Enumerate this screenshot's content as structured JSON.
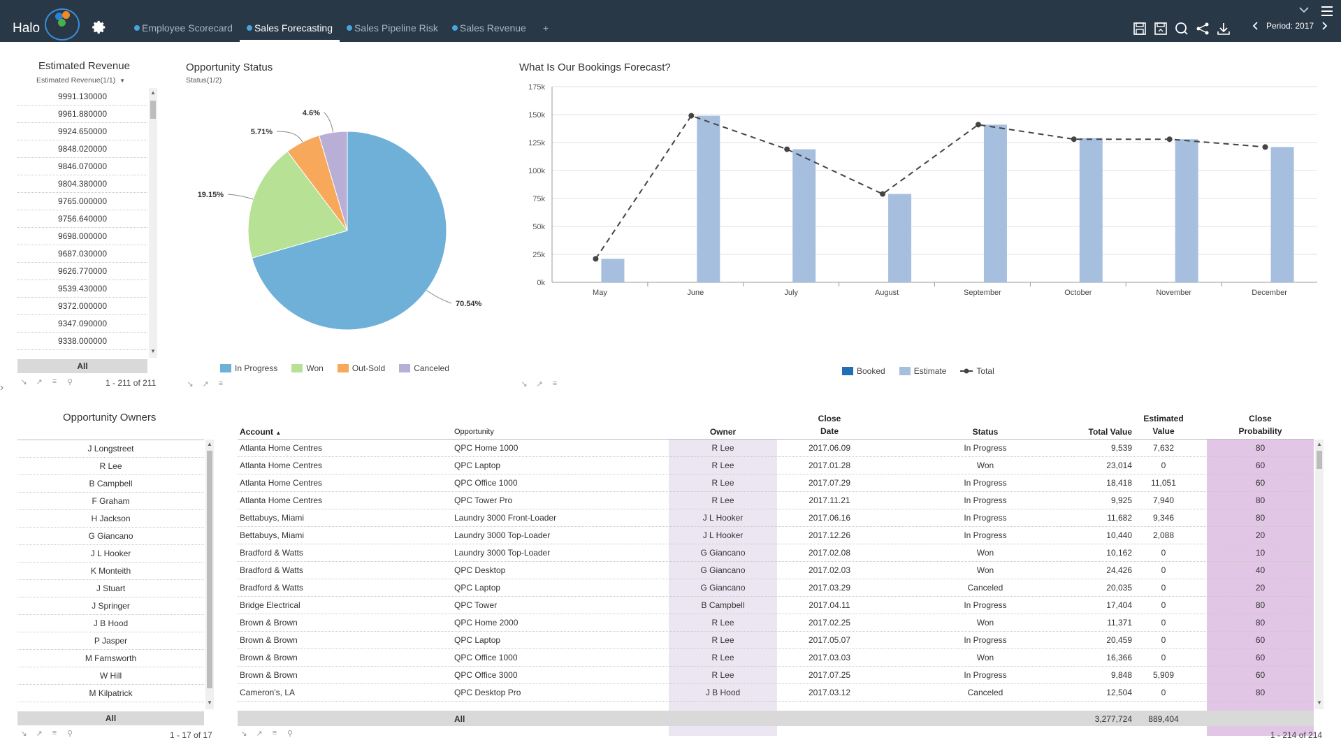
{
  "app": {
    "logo_text": "Halo",
    "tabs": [
      {
        "label": "Employee Scorecard",
        "active": false
      },
      {
        "label": "Sales Forecasting",
        "active": true
      },
      {
        "label": "Sales Pipeline Risk",
        "active": false
      },
      {
        "label": "Sales Revenue",
        "active": false
      }
    ],
    "add_tab": "+",
    "period_label": "Period: 2017",
    "colors": {
      "topbar": "#283847",
      "accent": "#4aa3df"
    },
    "top_icons": [
      "save-icon",
      "save-as-icon",
      "search-icon",
      "share-icon",
      "download-icon"
    ]
  },
  "est_revenue": {
    "title": "Estimated Revenue",
    "subtitle": "Estimated Revenue(1/1)",
    "items": [
      "9991.130000",
      "9961.880000",
      "9924.650000",
      "9848.020000",
      "9846.070000",
      "9804.380000",
      "9765.000000",
      "9756.640000",
      "9698.000000",
      "9687.030000",
      "9626.770000",
      "9539.430000",
      "9372.000000",
      "9347.090000",
      "9338.000000"
    ],
    "all_label": "All",
    "pager": "1 - 211 of 211"
  },
  "opp_status": {
    "title": "Opportunity Status",
    "subtitle": "Status(1/2)",
    "chart_data": {
      "type": "pie",
      "categories": [
        "In Progress",
        "Won",
        "Out-Sold",
        "Canceled"
      ],
      "values": [
        70.54,
        19.15,
        5.71,
        4.6
      ],
      "labels": [
        "70.54%",
        "19.15%",
        "5.71%",
        "4.6%"
      ],
      "colors": [
        "#6eb0d8",
        "#b7e295",
        "#f7a85a",
        "#b9aed6"
      ],
      "legend": "bottom"
    }
  },
  "bookings": {
    "title": "What Is Our Bookings Forecast?",
    "chart_data": {
      "type": "bar",
      "categories": [
        "May",
        "June",
        "July",
        "August",
        "September",
        "October",
        "November",
        "December"
      ],
      "series": [
        {
          "name": "Booked",
          "values": [
            0,
            0,
            0,
            0,
            0,
            0,
            0,
            0
          ],
          "color": "#1f6fb2"
        },
        {
          "name": "Estimate",
          "values": [
            21000,
            149000,
            119000,
            79000,
            141000,
            129000,
            128000,
            121000
          ],
          "color": "#a7bfdf"
        },
        {
          "name": "Total",
          "values": [
            21000,
            149000,
            119000,
            79000,
            141000,
            128000,
            128000,
            121000
          ],
          "color": "#444444",
          "line": true
        }
      ],
      "y_ticks": [
        "0k",
        "25k",
        "50k",
        "75k",
        "100k",
        "125k",
        "150k",
        "175k"
      ],
      "ylim": [
        0,
        175000
      ],
      "grid": true,
      "legend": "bottom"
    }
  },
  "owners": {
    "title": "Opportunity Owners",
    "items": [
      "J Longstreet",
      "R Lee",
      "B Campbell",
      "F Graham",
      "H Jackson",
      "G Giancano",
      "J L Hooker",
      "K Monteith",
      "J Stuart",
      "J Springer",
      "J B Hood",
      "P Jasper",
      "M Farnsworth",
      "W Hill",
      "M Kilpatrick"
    ],
    "all_label": "All",
    "pager": "1 - 17 of 17"
  },
  "table": {
    "headers": {
      "account": "Account",
      "opportunity": "Opportunity",
      "owner": "Owner",
      "close_date_1": "Close",
      "close_date_2": "Date",
      "status": "Status",
      "total_value": "Total Value",
      "est_value_1": "Estimated",
      "est_value_2": "Value",
      "close_prob_1": "Close",
      "close_prob_2": "Probability"
    },
    "rows": [
      {
        "account": "Atlanta Home Centres",
        "opportunity": "QPC Home 1000",
        "owner": "R Lee",
        "date": "2017.06.09",
        "status": "In Progress",
        "total": "9,539",
        "est": "7,632",
        "prob": "80"
      },
      {
        "account": "Atlanta Home Centres",
        "opportunity": "QPC Laptop",
        "owner": "R Lee",
        "date": "2017.01.28",
        "status": "Won",
        "total": "23,014",
        "est": "0",
        "prob": "60"
      },
      {
        "account": "Atlanta Home Centres",
        "opportunity": "QPC Office 1000",
        "owner": "R Lee",
        "date": "2017.07.29",
        "status": "In Progress",
        "total": "18,418",
        "est": "11,051",
        "prob": "60"
      },
      {
        "account": "Atlanta Home Centres",
        "opportunity": "QPC Tower Pro",
        "owner": "R Lee",
        "date": "2017.11.21",
        "status": "In Progress",
        "total": "9,925",
        "est": "7,940",
        "prob": "80"
      },
      {
        "account": "Bettabuys, Miami",
        "opportunity": "Laundry 3000 Front-Loader",
        "owner": "J L Hooker",
        "date": "2017.06.16",
        "status": "In Progress",
        "total": "11,682",
        "est": "9,346",
        "prob": "80"
      },
      {
        "account": "Bettabuys, Miami",
        "opportunity": "Laundry 3000 Top-Loader",
        "owner": "J L Hooker",
        "date": "2017.12.26",
        "status": "In Progress",
        "total": "10,440",
        "est": "2,088",
        "prob": "20"
      },
      {
        "account": "Bradford & Watts",
        "opportunity": "Laundry 3000 Top-Loader",
        "owner": "G Giancano",
        "date": "2017.02.08",
        "status": "Won",
        "total": "10,162",
        "est": "0",
        "prob": "10"
      },
      {
        "account": "Bradford & Watts",
        "opportunity": "QPC Desktop",
        "owner": "G Giancano",
        "date": "2017.02.03",
        "status": "Won",
        "total": "24,426",
        "est": "0",
        "prob": "40"
      },
      {
        "account": "Bradford & Watts",
        "opportunity": "QPC Laptop",
        "owner": "G Giancano",
        "date": "2017.03.29",
        "status": "Canceled",
        "total": "20,035",
        "est": "0",
        "prob": "20"
      },
      {
        "account": "Bridge Electrical",
        "opportunity": "QPC Tower",
        "owner": "B Campbell",
        "date": "2017.04.11",
        "status": "In Progress",
        "total": "17,404",
        "est": "0",
        "prob": "80"
      },
      {
        "account": "Brown & Brown",
        "opportunity": "QPC Home 2000",
        "owner": "R Lee",
        "date": "2017.02.25",
        "status": "Won",
        "total": "11,371",
        "est": "0",
        "prob": "80"
      },
      {
        "account": "Brown & Brown",
        "opportunity": "QPC Laptop",
        "owner": "R Lee",
        "date": "2017.05.07",
        "status": "In Progress",
        "total": "20,459",
        "est": "0",
        "prob": "60"
      },
      {
        "account": "Brown & Brown",
        "opportunity": "QPC Office 1000",
        "owner": "R Lee",
        "date": "2017.03.03",
        "status": "Won",
        "total": "16,366",
        "est": "0",
        "prob": "60"
      },
      {
        "account": "Brown & Brown",
        "opportunity": "QPC Office 3000",
        "owner": "R Lee",
        "date": "2017.07.25",
        "status": "In Progress",
        "total": "9,848",
        "est": "5,909",
        "prob": "60"
      },
      {
        "account": "Cameron's, LA",
        "opportunity": "QPC Desktop Pro",
        "owner": "J B Hood",
        "date": "2017.03.12",
        "status": "Canceled",
        "total": "12,504",
        "est": "0",
        "prob": "80"
      }
    ],
    "footer": {
      "all_label": "All",
      "total_sum": "3,277,724",
      "est_sum": "889,404"
    },
    "pager": "1 - 214 of 214",
    "colors": {
      "owner_highlight": "#ece6f3",
      "prob_highlight": "#e2c6e6"
    }
  }
}
